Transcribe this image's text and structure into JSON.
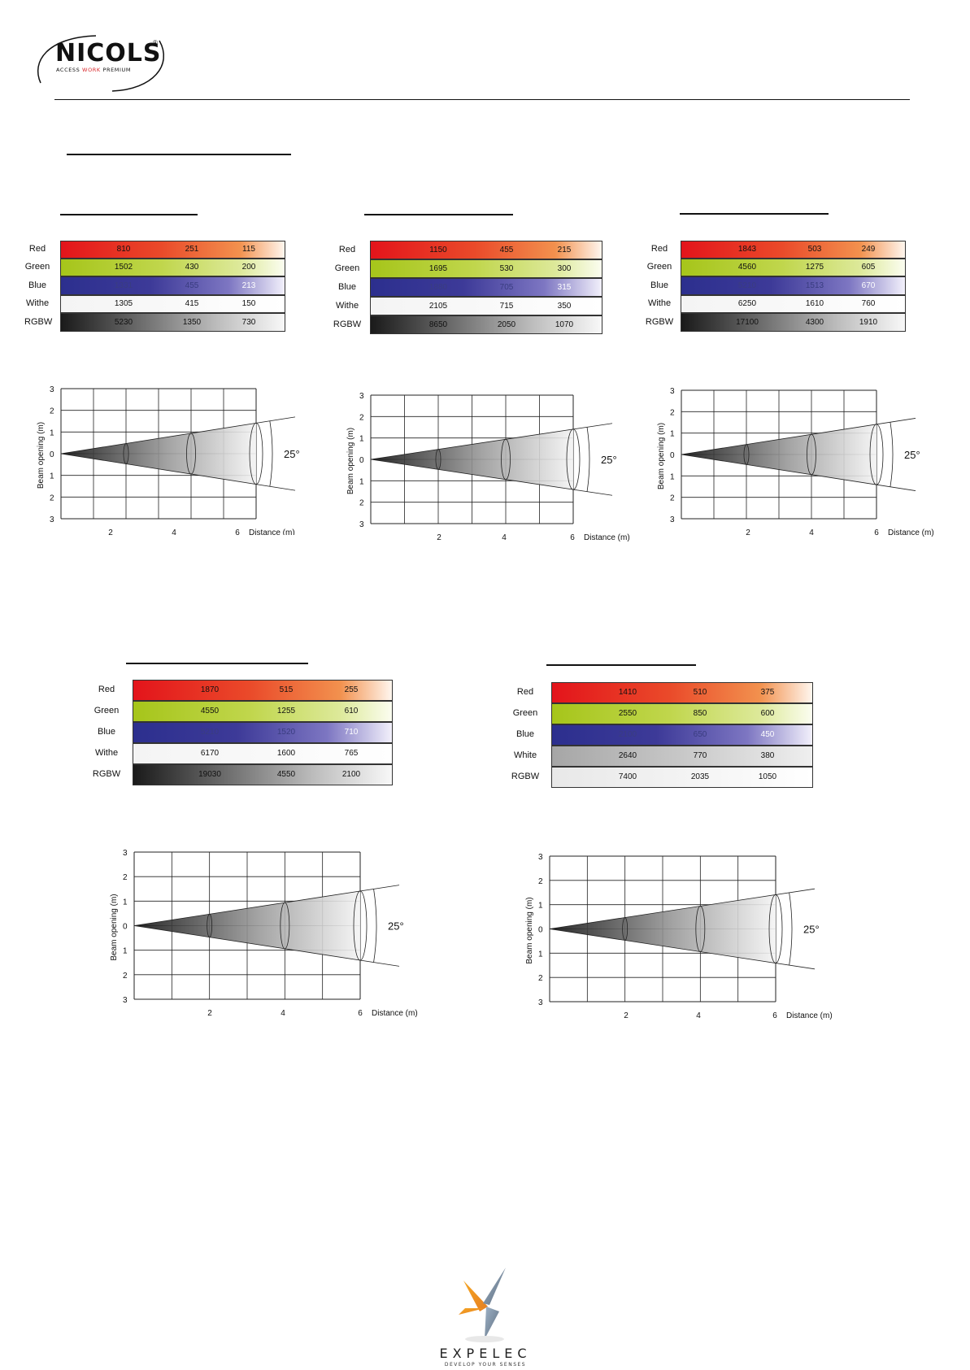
{
  "header": {
    "brand": "NICOLS",
    "brand_mark": "®",
    "tagline_1": "ACCESS",
    "tagline_2": "WORK",
    "tagline_3": "PREMIUM"
  },
  "colors": {
    "accent_red": "#d8262a",
    "rule": "#111111"
  },
  "footer": {
    "brand": "EXPELEC",
    "tagline": "DEVELOP YOUR SENSES"
  },
  "panels": [
    {
      "rows": [
        {
          "label": "Red",
          "values": [
            "810",
            "251",
            "115"
          ]
        },
        {
          "label": "Green",
          "values": [
            "1502",
            "430",
            "200"
          ]
        },
        {
          "label": "Blue",
          "values": [
            "1331",
            "455",
            "213"
          ]
        },
        {
          "label": "Withe",
          "values": [
            "1305",
            "415",
            "150"
          ]
        },
        {
          "label": "RGBW",
          "values": [
            "5230",
            "1350",
            "730"
          ]
        }
      ],
      "chart": {
        "y_ticks": [
          "3",
          "2",
          "1",
          "0",
          "1",
          "2",
          "3"
        ],
        "x_ticks": [
          "2",
          "4",
          "6"
        ],
        "ylabel": "Beam opening (m)",
        "xlabel": "Distance (m)",
        "angle": "25°"
      }
    },
    {
      "rows": [
        {
          "label": "Red",
          "values": [
            "1150",
            "455",
            "215"
          ]
        },
        {
          "label": "Green",
          "values": [
            "1695",
            "530",
            "300"
          ]
        },
        {
          "label": "Blue",
          "values": [
            "1880",
            "705",
            "315"
          ]
        },
        {
          "label": "Withe",
          "values": [
            "2105",
            "715",
            "350"
          ]
        },
        {
          "label": "RGBW",
          "values": [
            "8650",
            "2050",
            "1070"
          ]
        }
      ],
      "chart": {
        "y_ticks": [
          "3",
          "2",
          "1",
          "0",
          "1",
          "2",
          "3"
        ],
        "x_ticks": [
          "2",
          "4",
          "6"
        ],
        "ylabel": "Beam opening (m)",
        "xlabel": "Distance (m)",
        "angle": "25°"
      }
    },
    {
      "rows": [
        {
          "label": "Red",
          "values": [
            "1843",
            "503",
            "249"
          ]
        },
        {
          "label": "Green",
          "values": [
            "4560",
            "1275",
            "605"
          ]
        },
        {
          "label": "Blue",
          "values": [
            "5210",
            "1513",
            "670"
          ]
        },
        {
          "label": "Withe",
          "values": [
            "6250",
            "1610",
            "760"
          ]
        },
        {
          "label": "RGBW",
          "values": [
            "17100",
            "4300",
            "1910"
          ]
        }
      ],
      "chart": {
        "y_ticks": [
          "3",
          "2",
          "1",
          "0",
          "1",
          "2",
          "3"
        ],
        "x_ticks": [
          "2",
          "4",
          "6"
        ],
        "ylabel": "Beam opening (m)",
        "xlabel": "Distance (m)",
        "angle": "25°"
      }
    },
    {
      "rows": [
        {
          "label": "Red",
          "values": [
            "1870",
            "515",
            "255"
          ]
        },
        {
          "label": "Green",
          "values": [
            "4550",
            "1255",
            "610"
          ]
        },
        {
          "label": "Blue",
          "values": [
            "5210",
            "1520",
            "710"
          ]
        },
        {
          "label": "Withe",
          "values": [
            "6170",
            "1600",
            "765"
          ]
        },
        {
          "label": "RGBW",
          "values": [
            "19030",
            "4550",
            "2100"
          ]
        }
      ],
      "chart": {
        "y_ticks": [
          "3",
          "2",
          "1",
          "0",
          "1",
          "2",
          "3"
        ],
        "x_ticks": [
          "2",
          "4",
          "6"
        ],
        "ylabel": "Beam opening (m)",
        "xlabel": "Distance (m)",
        "angle": "25°"
      }
    },
    {
      "rows": [
        {
          "label": "Red",
          "values": [
            "1410",
            "510",
            "375"
          ]
        },
        {
          "label": "Green",
          "values": [
            "2550",
            "850",
            "600"
          ]
        },
        {
          "label": "Blue",
          "values": [
            "2100",
            "650",
            "450"
          ]
        },
        {
          "label": "White",
          "values": [
            "2640",
            "770",
            "380"
          ]
        },
        {
          "label": "RGBW",
          "values": [
            "7400",
            "2035",
            "1050"
          ]
        }
      ],
      "chart": {
        "y_ticks": [
          "3",
          "2",
          "1",
          "0",
          "1",
          "2",
          "3"
        ],
        "x_ticks": [
          "2",
          "4",
          "6"
        ],
        "ylabel": "Beam opening (m)",
        "xlabel": "Distance (m)",
        "angle": "25°"
      }
    }
  ]
}
